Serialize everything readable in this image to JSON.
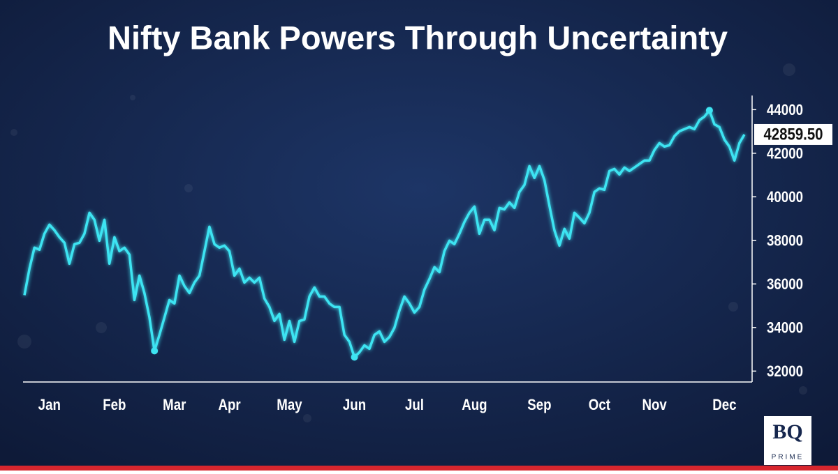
{
  "chart_data": {
    "type": "line",
    "title": "Nifty Bank Powers Through Uncertainty",
    "categories": [
      null,
      null,
      null,
      null,
      null,
      "Jan",
      null,
      null,
      null,
      null,
      null,
      null,
      null,
      null,
      null,
      null,
      null,
      null,
      "Feb",
      null,
      null,
      null,
      null,
      null,
      null,
      null,
      null,
      null,
      null,
      null,
      "Mar",
      null,
      null,
      null,
      null,
      null,
      null,
      null,
      null,
      null,
      null,
      "Apr",
      null,
      null,
      null,
      null,
      null,
      null,
      null,
      null,
      null,
      null,
      null,
      "May",
      null,
      null,
      null,
      null,
      null,
      null,
      null,
      null,
      null,
      null,
      null,
      null,
      "Jun",
      null,
      null,
      null,
      null,
      null,
      null,
      null,
      null,
      null,
      null,
      null,
      "Jul",
      null,
      null,
      null,
      null,
      null,
      null,
      null,
      null,
      null,
      null,
      null,
      "Aug",
      null,
      null,
      null,
      null,
      null,
      null,
      null,
      null,
      null,
      null,
      null,
      null,
      "Sep",
      null,
      null,
      null,
      null,
      null,
      null,
      null,
      null,
      null,
      null,
      null,
      "Oct",
      null,
      null,
      null,
      null,
      null,
      null,
      null,
      null,
      null,
      null,
      "Nov",
      null,
      null,
      null,
      null,
      null,
      null,
      null,
      null,
      null,
      null,
      null,
      null,
      null,
      "Dec",
      null,
      null,
      null,
      null
    ],
    "series": [
      {
        "color": "#3ee4f2",
        "values": [
          35488,
          36704,
          37664,
          37568,
          38304,
          38720,
          38464,
          38144,
          37888,
          36928,
          37824,
          37888,
          38304,
          39264,
          38944,
          37984,
          38944,
          36928,
          38144,
          37504,
          37664,
          37344,
          35264,
          36384,
          35584,
          34464,
          32928,
          33664,
          34464,
          35264,
          35104,
          36384,
          35904,
          35584,
          36064,
          36384,
          37504,
          38624,
          37824,
          37664,
          37760,
          37504,
          36384,
          36704,
          36064,
          36288,
          36064,
          36288,
          35328,
          34944,
          34304,
          34624,
          33440,
          34304,
          33344,
          34304,
          34368,
          35424,
          35840,
          35424,
          35424,
          35104,
          34944,
          34944,
          33664,
          33344,
          32640,
          32864,
          33184,
          33024,
          33664,
          33824,
          33344,
          33568,
          33984,
          34784,
          35424,
          35104,
          34688,
          34944,
          35744,
          36224,
          36768,
          36544,
          37504,
          37984,
          37824,
          38304,
          38848,
          39264,
          39552,
          38304,
          38944,
          38944,
          38464,
          39488,
          39424,
          39744,
          39488,
          40224,
          40544,
          41408,
          40864,
          41408,
          40768,
          39584,
          38464,
          37760,
          38528,
          38080,
          39264,
          39040,
          38784,
          39264,
          40224,
          40384,
          40320,
          41184,
          41280,
          41024,
          41344,
          41184,
          41344,
          41504,
          41664,
          41664,
          42144,
          42464,
          42304,
          42368,
          42784,
          43008,
          43104,
          43200,
          43104,
          43520,
          43680,
          43968,
          43328,
          43200,
          42624,
          42304,
          41664,
          42464,
          42859.5
        ]
      }
    ],
    "ylim": [
      31500,
      44650
    ],
    "yticks": [
      32000,
      34000,
      36000,
      38000,
      40000,
      42000,
      44000
    ],
    "current_value": {
      "value": 42859.5,
      "label": "42859.50"
    },
    "logo": {
      "top": "BQ",
      "bottom": "PRIME"
    }
  }
}
